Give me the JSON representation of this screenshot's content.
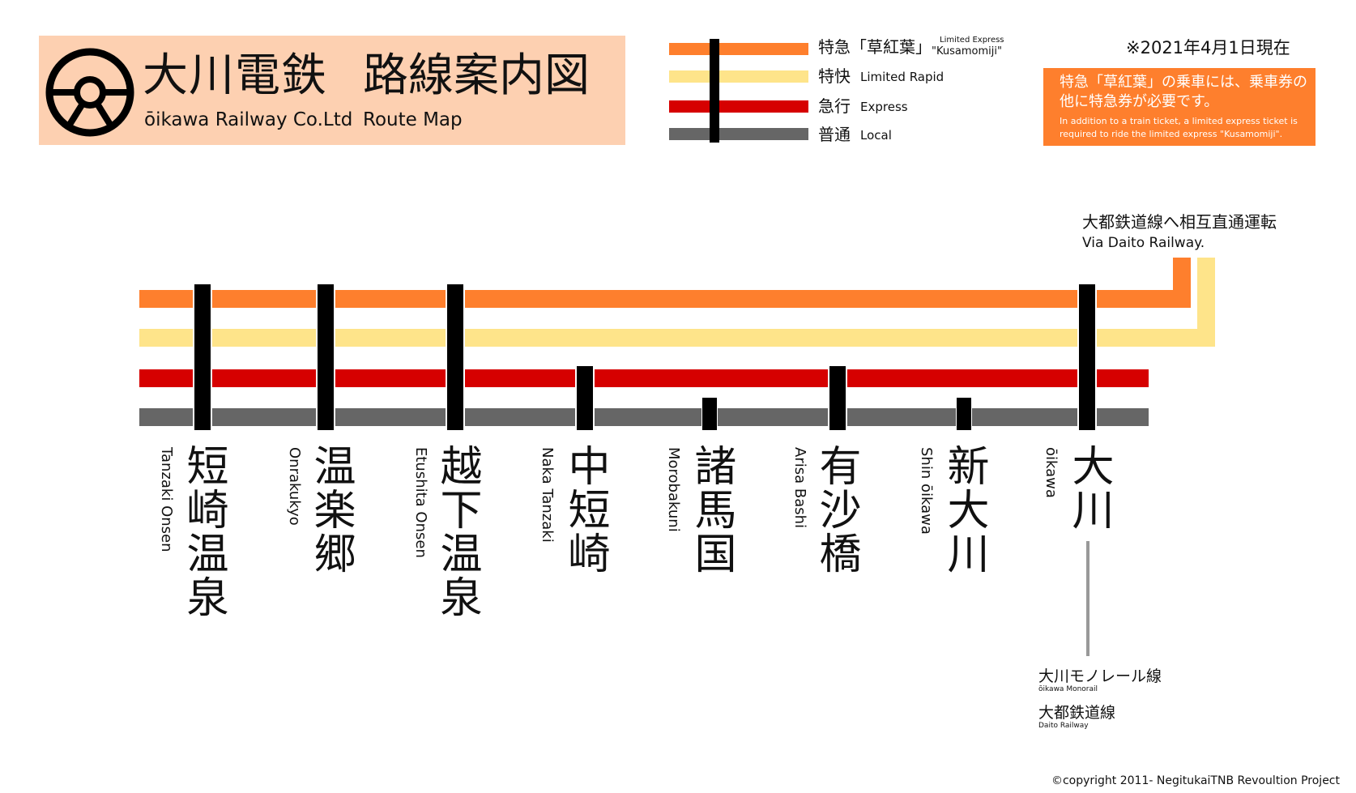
{
  "header": {
    "title_company_jp": "大川電鉄",
    "title_route_jp": "路線案内図",
    "company_en": "ōikawa Railway Co.Ltd",
    "route_en": "Route Map"
  },
  "legend": {
    "limited_express": {
      "jp": "特急「草紅葉」",
      "en_line1": "Limited Express",
      "en_line2": "\"Kusamomiji\"",
      "color": "#fe7f2d"
    },
    "limited_rapid": {
      "jp": "特快",
      "en": "Limited Rapid",
      "color": "#fee48a"
    },
    "express": {
      "jp": "急行",
      "en": "Express",
      "color": "#d60000"
    },
    "local": {
      "jp": "普通",
      "en": "Local",
      "color": "#666666"
    }
  },
  "date_note": "※2021年4月1日現在",
  "notice": {
    "jp": "特急「草紅葉」の乗車には、乗車券の他に特急券が必要です。",
    "en": "In addition to a train ticket, a limited express ticket is required to ride the limited express \"Kusamomiji\"."
  },
  "through_service": {
    "jp": "大都鉄道線へ相互直通運転",
    "en": "Via Daito Railway."
  },
  "stations": [
    {
      "jp": "短崎温泉",
      "en": "Tanzaki Onsen",
      "stops": [
        "limited_express",
        "limited_rapid",
        "express",
        "local"
      ]
    },
    {
      "jp": "温楽郷",
      "en": "Onrakukyo",
      "stops": [
        "limited_express",
        "limited_rapid",
        "express",
        "local"
      ]
    },
    {
      "jp": "越下温泉",
      "en": "Etushita Onsen",
      "stops": [
        "limited_express",
        "limited_rapid",
        "express",
        "local"
      ]
    },
    {
      "jp": "中短崎",
      "en": "Naka Tanzaki",
      "stops": [
        "express",
        "local"
      ]
    },
    {
      "jp": "諸馬国",
      "en": "Morobakuni",
      "stops": [
        "local"
      ]
    },
    {
      "jp": "有沙橋",
      "en": "Arisa Bashi",
      "stops": [
        "express",
        "local"
      ]
    },
    {
      "jp": "新大川",
      "en": "Shin ōikawa",
      "stops": [
        "local"
      ]
    },
    {
      "jp": "大川",
      "en": "ōikawa",
      "stops": [
        "limited_express",
        "limited_rapid",
        "express",
        "local"
      ]
    }
  ],
  "connections": [
    {
      "jp": "大川モノレール線",
      "en": "ōikawa Monorail"
    },
    {
      "jp": "大都鉄道線",
      "en": "Daito Railway"
    }
  ],
  "copyright": "©copyright 2011- NegitukaiTNB Revoultion Project"
}
